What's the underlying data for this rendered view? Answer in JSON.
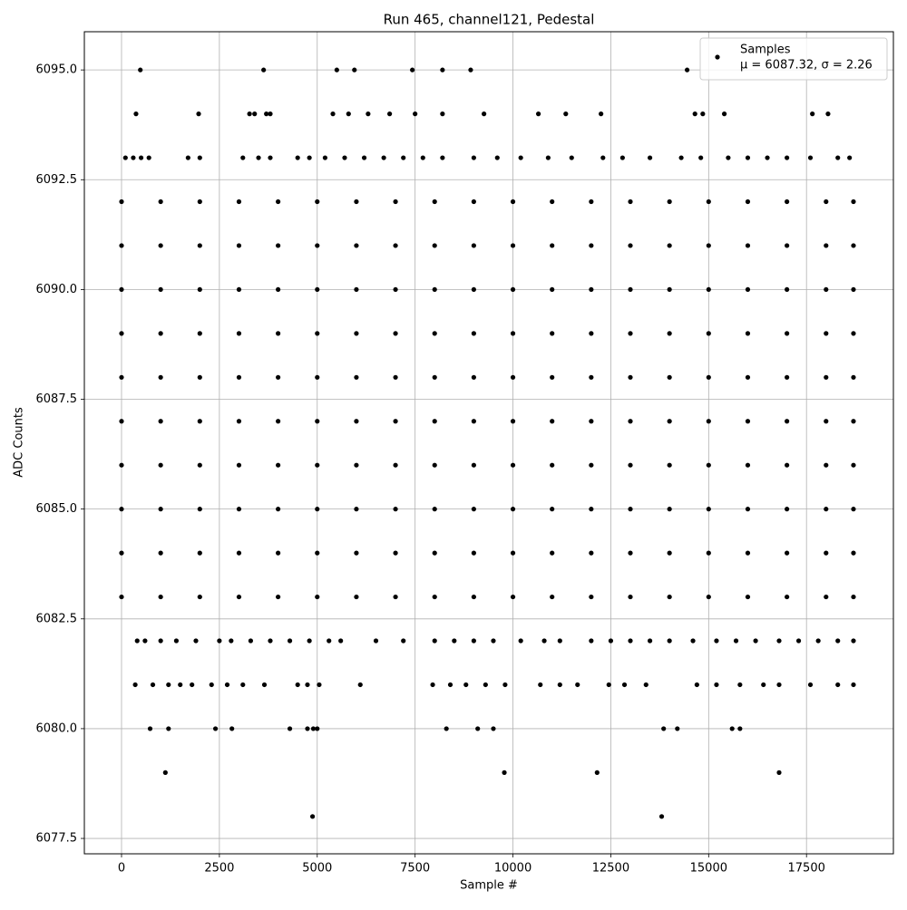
{
  "chart_data": {
    "type": "scatter",
    "title": "Run 465, channel121, Pedestal",
    "xlabel": "Sample #",
    "ylabel": "ADC Counts",
    "xlim": [
      -950,
      19720
    ],
    "ylim": [
      6077.15,
      6095.87
    ],
    "xticks": [
      0,
      2500,
      5000,
      7500,
      10000,
      12500,
      15000,
      17500
    ],
    "yticks": [
      6077.5,
      {
        "value": 6080,
        "label": "6080.0"
      },
      6082.5,
      {
        "value": 6085,
        "label": "6085.0"
      },
      6087.5,
      {
        "value": 6090,
        "label": "6090.0"
      },
      6092.5,
      {
        "value": 6095,
        "label": "6095.0"
      }
    ],
    "grid": true,
    "legend": "upper right",
    "legend_note": "μ = 6087.32, σ = 2.26",
    "series": [
      {
        "name": "Samples",
        "color": "#000000",
        "x": [
          480,
          3630,
          5500,
          5950,
          7430,
          8200,
          8920,
          14450,
          370,
          1970,
          3270,
          3400,
          3700,
          3800,
          5400,
          5800,
          6300,
          6850,
          7500,
          8200,
          9260,
          10650,
          11350,
          12250,
          14650,
          14850,
          15400,
          17650,
          18050,
          100,
          300,
          500,
          700,
          1700,
          2000,
          3100,
          3500,
          3800,
          4500,
          4800,
          5200,
          5700,
          6200,
          6700,
          7200,
          7700,
          8200,
          9000,
          9600,
          10200,
          10900,
          11500,
          12300,
          12800,
          13500,
          14300,
          14800,
          15500,
          16000,
          16500,
          17000,
          17600,
          18300,
          18600,
          0,
          1000,
          2000,
          3000,
          4000,
          5000,
          6000,
          7000,
          8000,
          9000,
          10000,
          11000,
          12000,
          13000,
          14000,
          15000,
          16000,
          17000,
          18000,
          18700,
          0,
          1000,
          2000,
          3000,
          4000,
          5000,
          6000,
          7000,
          8000,
          9000,
          10000,
          11000,
          12000,
          13000,
          14000,
          15000,
          16000,
          17000,
          18000,
          18700,
          0,
          1000,
          2000,
          3000,
          4000,
          5000,
          6000,
          7000,
          8000,
          9000,
          10000,
          11000,
          12000,
          13000,
          14000,
          15000,
          16000,
          17000,
          18000,
          18700,
          0,
          1000,
          2000,
          3000,
          4000,
          5000,
          6000,
          7000,
          8000,
          9000,
          10000,
          11000,
          12000,
          13000,
          14000,
          15000,
          16000,
          17000,
          18000,
          18700,
          0,
          1000,
          2000,
          3000,
          4000,
          5000,
          6000,
          7000,
          8000,
          9000,
          10000,
          11000,
          12000,
          13000,
          14000,
          15000,
          16000,
          17000,
          18000,
          18700,
          0,
          1000,
          2000,
          3000,
          4000,
          5000,
          6000,
          7000,
          8000,
          9000,
          10000,
          11000,
          12000,
          13000,
          14000,
          15000,
          16000,
          17000,
          18000,
          18700,
          0,
          1000,
          2000,
          3000,
          4000,
          5000,
          6000,
          7000,
          8000,
          9000,
          10000,
          11000,
          12000,
          13000,
          14000,
          15000,
          16000,
          17000,
          18000,
          18700,
          0,
          1000,
          2000,
          3000,
          4000,
          5000,
          6000,
          7000,
          8000,
          9000,
          10000,
          11000,
          12000,
          13000,
          14000,
          15000,
          16000,
          17000,
          18000,
          18700,
          0,
          1000,
          2000,
          3000,
          4000,
          5000,
          6000,
          7000,
          8000,
          9000,
          10000,
          11000,
          12000,
          13000,
          14000,
          15000,
          16000,
          17000,
          18000,
          18700,
          0,
          1000,
          2000,
          3000,
          4000,
          5000,
          6000,
          7000,
          8000,
          9000,
          10000,
          11000,
          12000,
          13000,
          14000,
          15000,
          16000,
          17000,
          18000,
          18700,
          400,
          600,
          1000,
          1400,
          1900,
          2500,
          2800,
          3300,
          3800,
          4300,
          4800,
          5300,
          5600,
          6500,
          7200,
          8000,
          8500,
          9000,
          9500,
          10200,
          10800,
          11200,
          12000,
          12500,
          13000,
          13500,
          14000,
          14600,
          15200,
          15700,
          16200,
          16800,
          17300,
          17800,
          18300,
          18700,
          350,
          800,
          1200,
          1500,
          1800,
          2300,
          2700,
          3100,
          3650,
          4500,
          4750,
          5050,
          6100,
          7950,
          8400,
          8800,
          9300,
          9800,
          10700,
          11200,
          11650,
          12450,
          12850,
          13400,
          14700,
          15200,
          15800,
          16400,
          16800,
          17600,
          18300,
          18700,
          730,
          1200,
          2400,
          2820,
          4300,
          4750,
          4900,
          5000,
          8300,
          9100,
          9500,
          13850,
          14200,
          15600,
          15800,
          1120,
          9780,
          12150,
          16800,
          4880,
          13800
        ],
        "values": [
          6095,
          6095,
          6095,
          6095,
          6095,
          6095,
          6095,
          6095,
          6094,
          6094,
          6094,
          6094,
          6094,
          6094,
          6094,
          6094,
          6094,
          6094,
          6094,
          6094,
          6094,
          6094,
          6094,
          6094,
          6094,
          6094,
          6094,
          6094,
          6094,
          6093,
          6093,
          6093,
          6093,
          6093,
          6093,
          6093,
          6093,
          6093,
          6093,
          6093,
          6093,
          6093,
          6093,
          6093,
          6093,
          6093,
          6093,
          6093,
          6093,
          6093,
          6093,
          6093,
          6093,
          6093,
          6093,
          6093,
          6093,
          6093,
          6093,
          6093,
          6093,
          6093,
          6093,
          6093,
          6092,
          6092,
          6092,
          6092,
          6092,
          6092,
          6092,
          6092,
          6092,
          6092,
          6092,
          6092,
          6092,
          6092,
          6092,
          6092,
          6092,
          6092,
          6092,
          6092,
          6091,
          6091,
          6091,
          6091,
          6091,
          6091,
          6091,
          6091,
          6091,
          6091,
          6091,
          6091,
          6091,
          6091,
          6091,
          6091,
          6091,
          6091,
          6091,
          6091,
          6090,
          6090,
          6090,
          6090,
          6090,
          6090,
          6090,
          6090,
          6090,
          6090,
          6090,
          6090,
          6090,
          6090,
          6090,
          6090,
          6090,
          6090,
          6090,
          6090,
          6089,
          6089,
          6089,
          6089,
          6089,
          6089,
          6089,
          6089,
          6089,
          6089,
          6089,
          6089,
          6089,
          6089,
          6089,
          6089,
          6089,
          6089,
          6089,
          6089,
          6088,
          6088,
          6088,
          6088,
          6088,
          6088,
          6088,
          6088,
          6088,
          6088,
          6088,
          6088,
          6088,
          6088,
          6088,
          6088,
          6088,
          6088,
          6088,
          6088,
          6087,
          6087,
          6087,
          6087,
          6087,
          6087,
          6087,
          6087,
          6087,
          6087,
          6087,
          6087,
          6087,
          6087,
          6087,
          6087,
          6087,
          6087,
          6087,
          6087,
          6086,
          6086,
          6086,
          6086,
          6086,
          6086,
          6086,
          6086,
          6086,
          6086,
          6086,
          6086,
          6086,
          6086,
          6086,
          6086,
          6086,
          6086,
          6086,
          6086,
          6085,
          6085,
          6085,
          6085,
          6085,
          6085,
          6085,
          6085,
          6085,
          6085,
          6085,
          6085,
          6085,
          6085,
          6085,
          6085,
          6085,
          6085,
          6085,
          6085,
          6084,
          6084,
          6084,
          6084,
          6084,
          6084,
          6084,
          6084,
          6084,
          6084,
          6084,
          6084,
          6084,
          6084,
          6084,
          6084,
          6084,
          6084,
          6084,
          6084,
          6083,
          6083,
          6083,
          6083,
          6083,
          6083,
          6083,
          6083,
          6083,
          6083,
          6083,
          6083,
          6083,
          6083,
          6083,
          6083,
          6083,
          6083,
          6083,
          6083,
          6082,
          6082,
          6082,
          6082,
          6082,
          6082,
          6082,
          6082,
          6082,
          6082,
          6082,
          6082,
          6082,
          6082,
          6082,
          6082,
          6082,
          6082,
          6082,
          6082,
          6082,
          6082,
          6082,
          6082,
          6082,
          6082,
          6082,
          6082,
          6082,
          6082,
          6082,
          6082,
          6082,
          6082,
          6082,
          6082,
          6081,
          6081,
          6081,
          6081,
          6081,
          6081,
          6081,
          6081,
          6081,
          6081,
          6081,
          6081,
          6081,
          6081,
          6081,
          6081,
          6081,
          6081,
          6081,
          6081,
          6081,
          6081,
          6081,
          6081,
          6081,
          6081,
          6081,
          6081,
          6081,
          6081,
          6081,
          6081,
          6080,
          6080,
          6080,
          6080,
          6080,
          6080,
          6080,
          6080,
          6080,
          6080,
          6080,
          6080,
          6080,
          6080,
          6080,
          6079,
          6079,
          6079,
          6079,
          6078,
          6078
        ]
      }
    ]
  }
}
